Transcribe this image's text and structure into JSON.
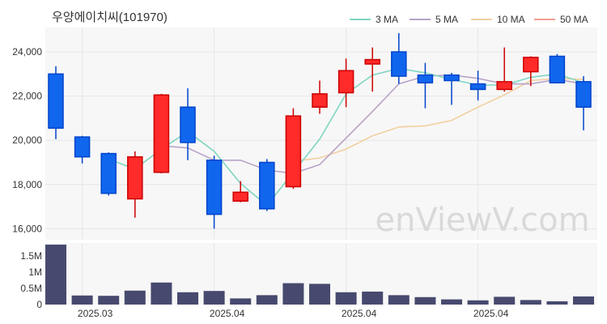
{
  "title": "우양에이치씨(101970)",
  "watermark": "enViewV.com",
  "colors": {
    "up": "#ff2a2a",
    "up_edge": "#cc0000",
    "down": "#1166ee",
    "down_edge": "#0044cc",
    "volume": "#474a6e",
    "panel_bg": "#f7f7f7",
    "grid": "#e6e6e6"
  },
  "legend": [
    {
      "label": "3 MA",
      "color": "#7fd6c2"
    },
    {
      "label": "5 MA",
      "color": "#b8a4c8"
    },
    {
      "label": "10 MA",
      "color": "#f2cfa0"
    },
    {
      "label": "50 MA",
      "color": "#f4a090"
    }
  ],
  "chart_data": {
    "type": "candlestick",
    "price_axis": {
      "ylim": [
        15500,
        25100
      ],
      "ticks": [
        16000,
        18000,
        20000,
        22000,
        24000
      ],
      "tick_labels": [
        "16,000",
        "18,000",
        "20,000",
        "22,000",
        "24,000"
      ]
    },
    "volume_axis": {
      "ylim": [
        0,
        1900000
      ],
      "ticks": [
        0,
        500000,
        1000000,
        1500000
      ],
      "tick_labels": [
        "0",
        "0.5M",
        "1M",
        "1.5M"
      ]
    },
    "x_tick_labels": [
      {
        "index": 1,
        "label": "2025.03"
      },
      {
        "index": 6,
        "label": "2025.04"
      },
      {
        "index": 11,
        "label": "2025.04"
      },
      {
        "index": 16,
        "label": "2025.04"
      }
    ],
    "candles": [
      {
        "o": 23000,
        "h": 23350,
        "l": 20050,
        "c": 20550,
        "v": 1850000
      },
      {
        "o": 20150,
        "h": 20200,
        "l": 18950,
        "c": 19250,
        "v": 280000
      },
      {
        "o": 19400,
        "h": 19450,
        "l": 17500,
        "c": 17600,
        "v": 270000
      },
      {
        "o": 17350,
        "h": 19500,
        "l": 16500,
        "c": 19250,
        "v": 430000
      },
      {
        "o": 18550,
        "h": 22100,
        "l": 18500,
        "c": 22050,
        "v": 680000
      },
      {
        "o": 21500,
        "h": 22350,
        "l": 19100,
        "c": 19900,
        "v": 380000
      },
      {
        "o": 19100,
        "h": 19300,
        "l": 16000,
        "c": 16650,
        "v": 420000
      },
      {
        "o": 17250,
        "h": 18150,
        "l": 17200,
        "c": 17650,
        "v": 190000
      },
      {
        "o": 19000,
        "h": 19150,
        "l": 16800,
        "c": 16900,
        "v": 290000
      },
      {
        "o": 17900,
        "h": 21450,
        "l": 17800,
        "c": 21100,
        "v": 660000
      },
      {
        "o": 21500,
        "h": 22700,
        "l": 21200,
        "c": 22100,
        "v": 640000
      },
      {
        "o": 22150,
        "h": 23700,
        "l": 21500,
        "c": 23150,
        "v": 380000
      },
      {
        "o": 23450,
        "h": 24200,
        "l": 22200,
        "c": 23650,
        "v": 400000
      },
      {
        "o": 24000,
        "h": 24850,
        "l": 22550,
        "c": 22900,
        "v": 290000
      },
      {
        "o": 22950,
        "h": 23500,
        "l": 21450,
        "c": 22600,
        "v": 230000
      },
      {
        "o": 22950,
        "h": 23050,
        "l": 21600,
        "c": 22700,
        "v": 160000
      },
      {
        "o": 22550,
        "h": 23150,
        "l": 21800,
        "c": 22300,
        "v": 130000
      },
      {
        "o": 22300,
        "h": 24200,
        "l": 22200,
        "c": 22650,
        "v": 240000
      },
      {
        "o": 23100,
        "h": 23800,
        "l": 22450,
        "c": 23750,
        "v": 140000
      },
      {
        "o": 23800,
        "h": 23900,
        "l": 22600,
        "c": 22600,
        "v": 100000
      },
      {
        "o": 22650,
        "h": 22900,
        "l": 20450,
        "c": 21500,
        "v": 250000
      }
    ],
    "ma3": [
      null,
      null,
      19150,
      18700,
      19600,
      20400,
      19500,
      18050,
      17050,
      18550,
      20050,
      22100,
      22950,
      23250,
      23050,
      22750,
      22500,
      22500,
      22850,
      23000,
      22600
    ],
    "ma5": [
      null,
      null,
      null,
      null,
      19750,
      19650,
      19100,
      19100,
      18650,
      18500,
      18900,
      20100,
      21300,
      22550,
      22900,
      22950,
      22800,
      22550,
      22550,
      22750,
      22550
    ],
    "ma10": [
      null,
      null,
      null,
      null,
      null,
      null,
      null,
      null,
      null,
      19050,
      19200,
      19600,
      20200,
      20600,
      20650,
      20900,
      21500,
      22050,
      22700,
      22800,
      22750
    ],
    "ma50": []
  }
}
